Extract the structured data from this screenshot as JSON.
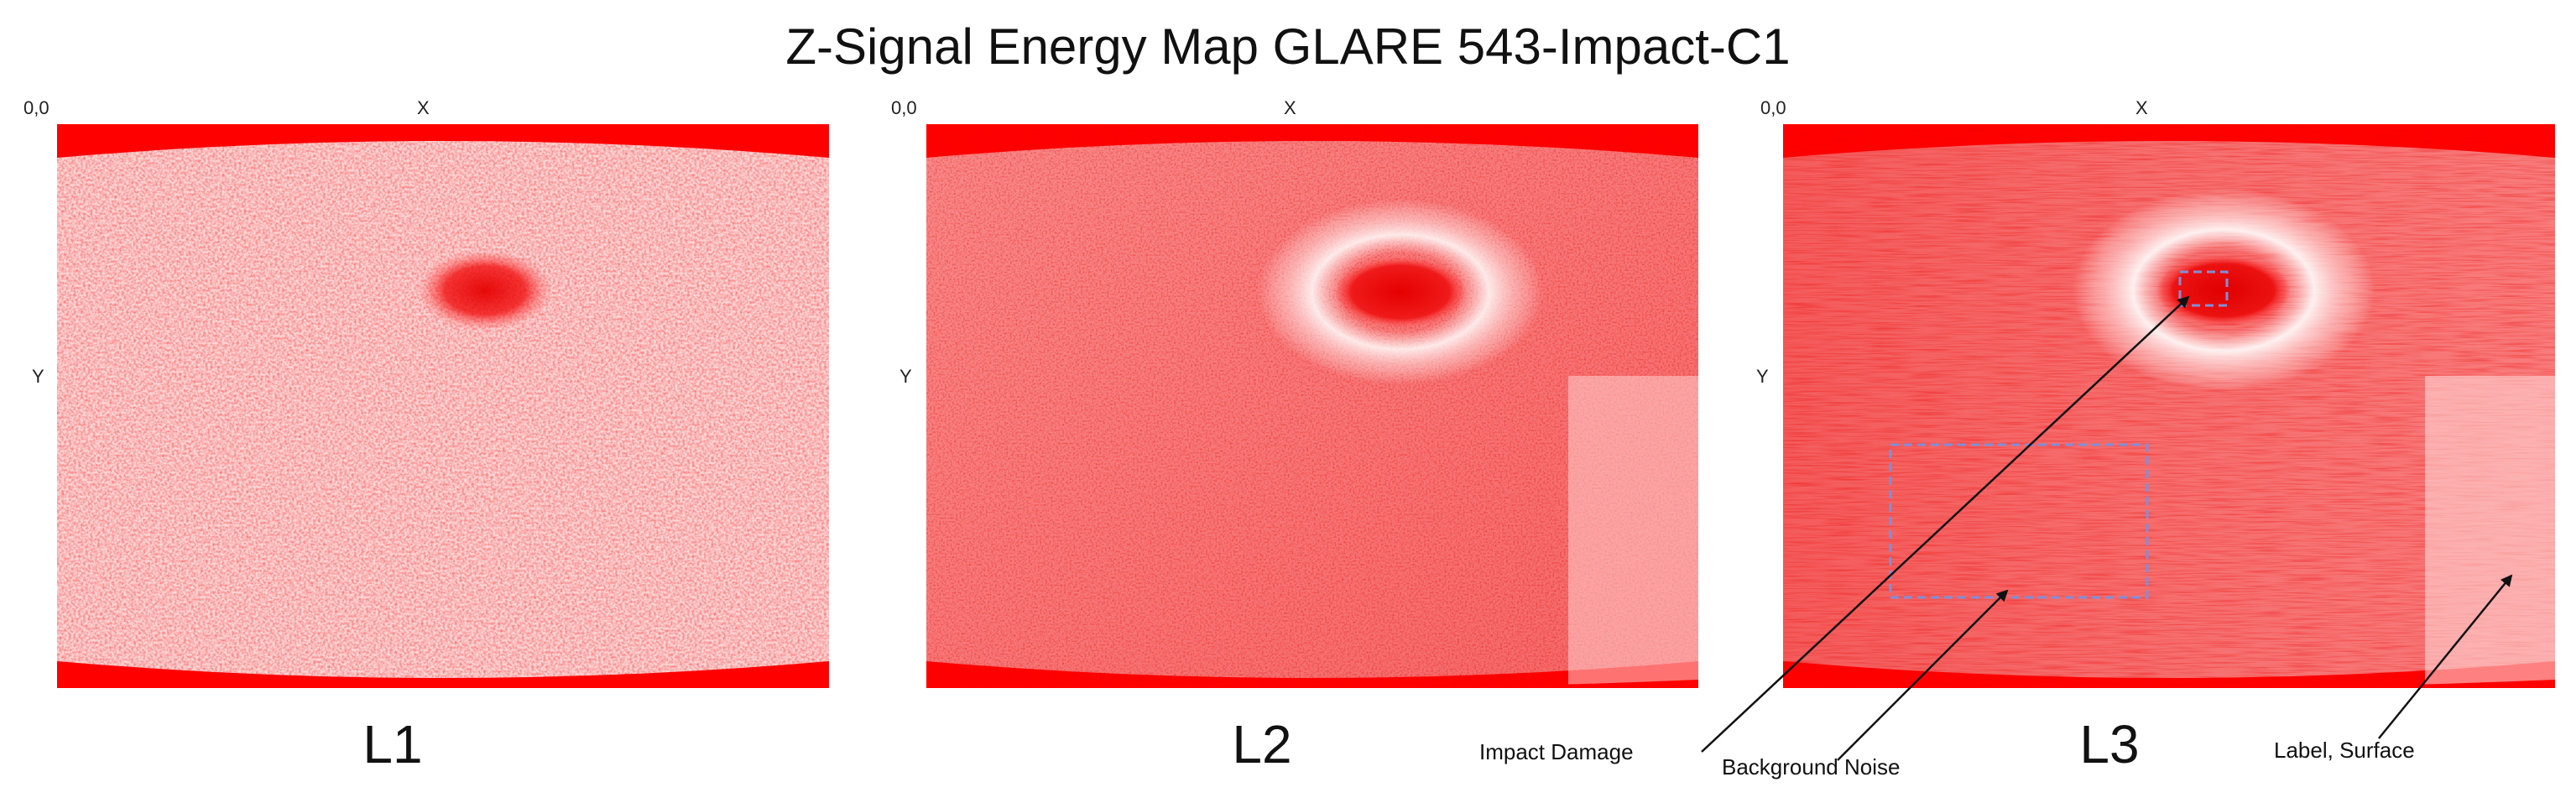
{
  "title": "Z-Signal Energy Map GLARE 543-Impact-C1",
  "axes": {
    "origin": "0,0",
    "x": "X",
    "y": "Y"
  },
  "panels": [
    {
      "label": "L1"
    },
    {
      "label": "L2"
    },
    {
      "label": "L3"
    }
  ],
  "annotations": {
    "impact_damage": "Impact Damage",
    "background_noise": "Background Noise",
    "label_surface": "Label, Surface"
  },
  "colors": {
    "signal": "#ff0000",
    "highlight_box": "#7f8fd8",
    "background": "#ffffff"
  }
}
